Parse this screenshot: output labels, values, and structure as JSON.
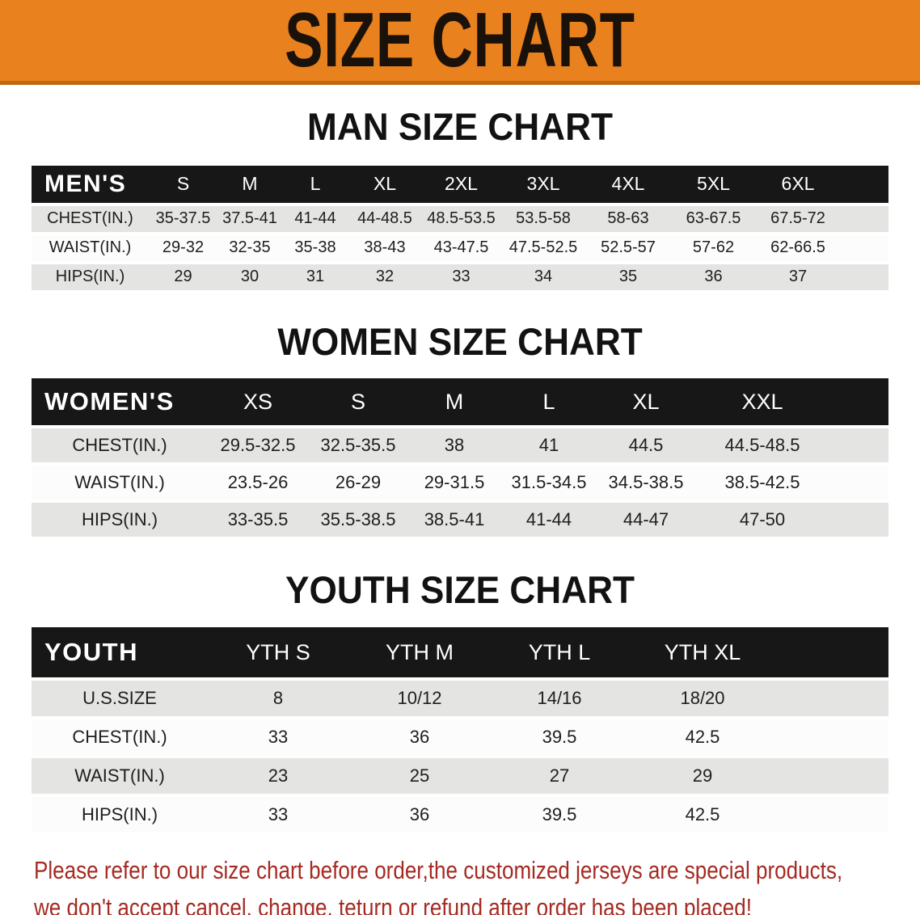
{
  "banner": {
    "title": "SIZE CHART",
    "bg_color": "#E8811E",
    "text_color": "#1A120A"
  },
  "chart_data": [
    {
      "type": "table",
      "title": "MAN SIZE CHART",
      "corner_label": "MEN'S",
      "columns": [
        "S",
        "M",
        "L",
        "XL",
        "2XL",
        "3XL",
        "4XL",
        "5XL",
        "6XL"
      ],
      "rows": [
        {
          "label": "CHEST(IN.)",
          "values": [
            "35-37.5",
            "37.5-41",
            "41-44",
            "44-48.5",
            "48.5-53.5",
            "53.5-58",
            "58-63",
            "63-67.5",
            "67.5-72"
          ]
        },
        {
          "label": "WAIST(IN.)",
          "values": [
            "29-32",
            "32-35",
            "35-38",
            "38-43",
            "43-47.5",
            "47.5-52.5",
            "52.5-57",
            "57-62",
            "62-66.5"
          ]
        },
        {
          "label": "HIPS(IN.)",
          "values": [
            "29",
            "30",
            "31",
            "32",
            "33",
            "34",
            "35",
            "36",
            "37"
          ]
        }
      ]
    },
    {
      "type": "table",
      "title": "WOMEN SIZE CHART",
      "corner_label": "WOMEN'S",
      "columns": [
        "XS",
        "S",
        "M",
        "L",
        "XL",
        "XXL"
      ],
      "rows": [
        {
          "label": "CHEST(IN.)",
          "values": [
            "29.5-32.5",
            "32.5-35.5",
            "38",
            "41",
            "44.5",
            "44.5-48.5"
          ]
        },
        {
          "label": "WAIST(IN.)",
          "values": [
            "23.5-26",
            "26-29",
            "29-31.5",
            "31.5-34.5",
            "34.5-38.5",
            "38.5-42.5"
          ]
        },
        {
          "label": "HIPS(IN.)",
          "values": [
            "33-35.5",
            "35.5-38.5",
            "38.5-41",
            "41-44",
            "44-47",
            "47-50"
          ]
        }
      ]
    },
    {
      "type": "table",
      "title": "YOUTH SIZE CHART",
      "corner_label": "YOUTH",
      "columns": [
        "YTH S",
        "YTH M",
        "YTH L",
        "YTH XL"
      ],
      "rows": [
        {
          "label": "U.S.SIZE",
          "values": [
            "8",
            "10/12",
            "14/16",
            "18/20"
          ]
        },
        {
          "label": "CHEST(IN.)",
          "values": [
            "33",
            "36",
            "39.5",
            "42.5"
          ]
        },
        {
          "label": "WAIST(IN.)",
          "values": [
            "23",
            "25",
            "27",
            "29"
          ]
        },
        {
          "label": "HIPS(IN.)",
          "values": [
            "33",
            "36",
            "39.5",
            "42.5"
          ]
        }
      ]
    }
  ],
  "notice": {
    "color": "#A52A22",
    "lines": [
      "Please refer to our size chart before order,the customized jerseys are special products,",
      "we don't accept cancel, change, teturn or refund after order has been placed!"
    ]
  },
  "colors": {
    "header_bar": "#171717",
    "row_shaded": "#E4E4E3",
    "row_plain": "#FCFCFC"
  }
}
